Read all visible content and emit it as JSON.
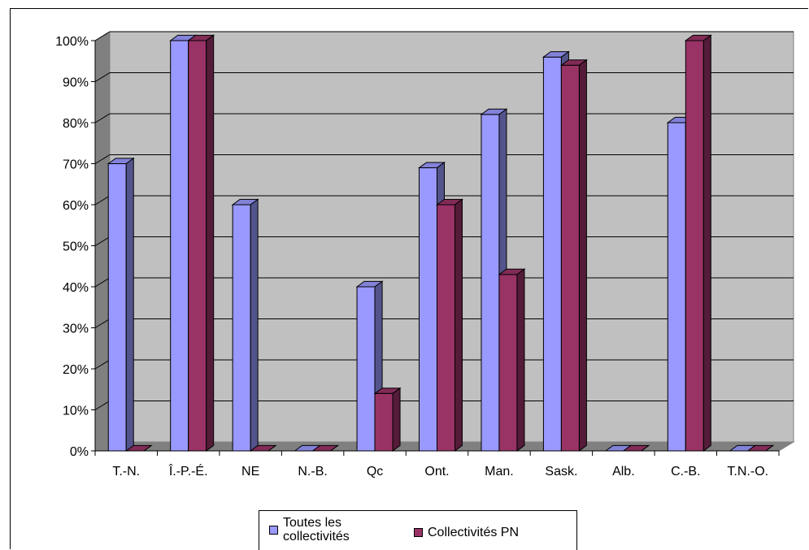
{
  "chart_data": {
    "type": "bar",
    "categories": [
      "T.-N.",
      "Î.-P.-É.",
      "NE",
      "N.-B.",
      "Qc",
      "Ont.",
      "Man.",
      "Sask.",
      "Alb.",
      "C.-B.",
      "T.N.-O."
    ],
    "series": [
      {
        "name": "Toutes les collectivités",
        "color": "#9999ff",
        "values": [
          70,
          100,
          60,
          0,
          40,
          69,
          82,
          96,
          0,
          80,
          0
        ]
      },
      {
        "name": "Collectivités PN",
        "color": "#993366",
        "values": [
          0,
          100,
          0,
          0,
          14,
          60,
          43,
          94,
          0,
          100,
          0
        ]
      }
    ],
    "y_ticks": [
      "0%",
      "10%",
      "20%",
      "30%",
      "40%",
      "50%",
      "60%",
      "70%",
      "80%",
      "90%",
      "100%"
    ],
    "ylim": [
      0,
      100
    ],
    "grid": true,
    "legend_position": "bottom",
    "plot_background": "#c0c0c0",
    "three_d": true
  },
  "legend": {
    "series1_line1": "Toutes les",
    "series1_line2": "collectivités",
    "series2": "Collectivités PN"
  }
}
